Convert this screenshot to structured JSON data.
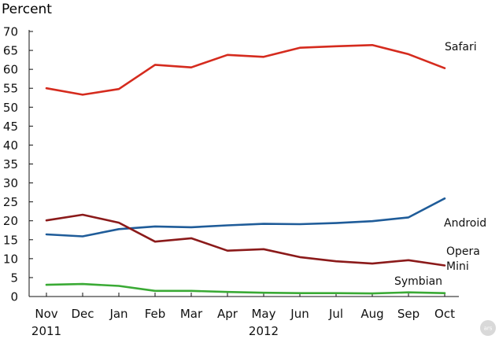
{
  "chart_data": {
    "type": "line",
    "ylabel": "Percent",
    "ylim": [
      0,
      70
    ],
    "yticks": [
      0,
      5,
      10,
      15,
      20,
      25,
      30,
      35,
      40,
      45,
      50,
      55,
      60,
      65,
      70
    ],
    "categories": [
      "Nov",
      "Dec",
      "Jan",
      "Feb",
      "Mar",
      "Apr",
      "May",
      "Jun",
      "Jul",
      "Aug",
      "Sep",
      "Oct"
    ],
    "year_labels": [
      {
        "index": 0,
        "label": "2011"
      },
      {
        "index": 6,
        "label": "2012"
      }
    ],
    "series": [
      {
        "name": "Safari",
        "color": "#d52b1e",
        "values": [
          55.0,
          53.3,
          54.8,
          61.2,
          60.5,
          63.8,
          63.3,
          65.7,
          66.1,
          66.4,
          64.0,
          60.3
        ]
      },
      {
        "name": "Android",
        "color": "#1f5c99",
        "values": [
          16.4,
          15.9,
          17.8,
          18.5,
          18.3,
          18.8,
          19.2,
          19.1,
          19.4,
          19.9,
          20.9,
          25.9
        ]
      },
      {
        "name": "Opera Mini",
        "color": "#8b1a1a",
        "values": [
          20.1,
          21.6,
          19.5,
          14.5,
          15.4,
          12.1,
          12.5,
          10.4,
          9.3,
          8.7,
          9.6,
          8.2
        ]
      },
      {
        "name": "Symbian",
        "color": "#3aaa35",
        "values": [
          3.1,
          3.3,
          2.8,
          1.5,
          1.5,
          1.2,
          1.0,
          0.9,
          0.9,
          0.8,
          1.1,
          0.9
        ]
      }
    ],
    "legend": "inline-right",
    "grid": false
  },
  "watermark": {
    "text": "ars",
    "icon": "ars-logo-icon"
  }
}
